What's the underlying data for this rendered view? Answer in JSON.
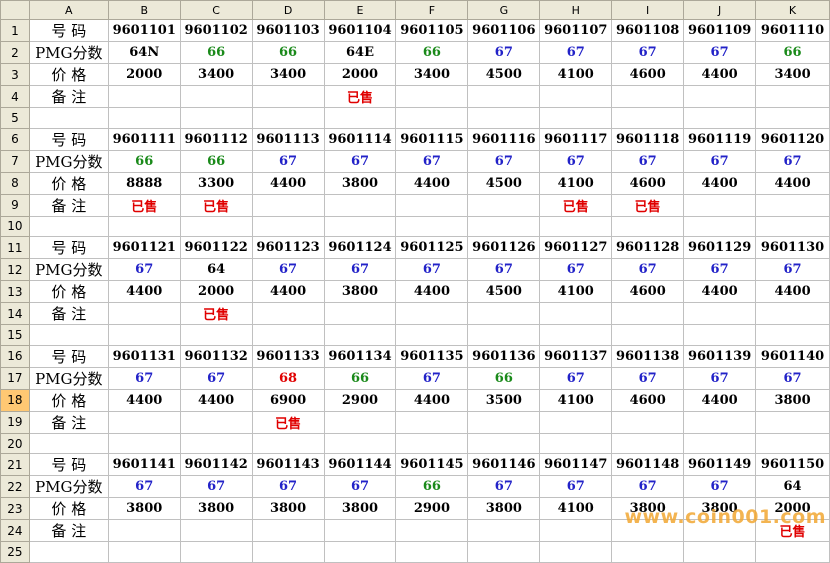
{
  "columns": [
    "A",
    "B",
    "C",
    "D",
    "E",
    "F",
    "G",
    "H",
    "I",
    "J",
    "K"
  ],
  "colors": {
    "green": "#1a8a1a",
    "blue": "#2222c8",
    "red": "#e00000",
    "header_bg": "#ece9d8",
    "active_row_header": "#ffc873"
  },
  "active_row": 18,
  "rows": [
    {
      "n": "1",
      "cells": [
        {
          "t": "号 码"
        },
        {
          "t": "9601101"
        },
        {
          "t": "9601102"
        },
        {
          "t": "9601103"
        },
        {
          "t": "9601104"
        },
        {
          "t": "9601105"
        },
        {
          "t": "9601106"
        },
        {
          "t": "9601107"
        },
        {
          "t": "9601108"
        },
        {
          "t": "9601109"
        },
        {
          "t": "9601110"
        }
      ]
    },
    {
      "n": "2",
      "cells": [
        {
          "t": "PMG分数"
        },
        {
          "t": "64N"
        },
        {
          "t": "66",
          "c": "green"
        },
        {
          "t": "66",
          "c": "green"
        },
        {
          "t": "64E"
        },
        {
          "t": "66",
          "c": "green"
        },
        {
          "t": "67",
          "c": "blue"
        },
        {
          "t": "67",
          "c": "blue"
        },
        {
          "t": "67",
          "c": "blue"
        },
        {
          "t": "67",
          "c": "blue"
        },
        {
          "t": "66",
          "c": "green"
        }
      ]
    },
    {
      "n": "3",
      "cells": [
        {
          "t": "价 格"
        },
        {
          "t": "2000"
        },
        {
          "t": "3400"
        },
        {
          "t": "3400"
        },
        {
          "t": "2000"
        },
        {
          "t": "3400"
        },
        {
          "t": "4500"
        },
        {
          "t": "4100"
        },
        {
          "t": "4600"
        },
        {
          "t": "4400"
        },
        {
          "t": "3400"
        }
      ]
    },
    {
      "n": "4",
      "cells": [
        {
          "t": "备 注"
        },
        {
          "t": ""
        },
        {
          "t": ""
        },
        {
          "t": ""
        },
        {
          "t": "已售",
          "c": "red"
        },
        {
          "t": ""
        },
        {
          "t": ""
        },
        {
          "t": ""
        },
        {
          "t": ""
        },
        {
          "t": ""
        },
        {
          "t": ""
        }
      ]
    },
    {
      "n": "5",
      "cells": [
        {
          "t": ""
        },
        {
          "t": ""
        },
        {
          "t": ""
        },
        {
          "t": ""
        },
        {
          "t": ""
        },
        {
          "t": ""
        },
        {
          "t": ""
        },
        {
          "t": ""
        },
        {
          "t": ""
        },
        {
          "t": ""
        },
        {
          "t": ""
        }
      ]
    },
    {
      "n": "6",
      "cells": [
        {
          "t": "号 码"
        },
        {
          "t": "9601111"
        },
        {
          "t": "9601112"
        },
        {
          "t": "9601113"
        },
        {
          "t": "9601114"
        },
        {
          "t": "9601115"
        },
        {
          "t": "9601116"
        },
        {
          "t": "9601117"
        },
        {
          "t": "9601118"
        },
        {
          "t": "9601119"
        },
        {
          "t": "9601120"
        }
      ]
    },
    {
      "n": "7",
      "cells": [
        {
          "t": "PMG分数"
        },
        {
          "t": "66",
          "c": "green"
        },
        {
          "t": "66",
          "c": "green"
        },
        {
          "t": "67",
          "c": "blue"
        },
        {
          "t": "67",
          "c": "blue"
        },
        {
          "t": "67",
          "c": "blue"
        },
        {
          "t": "67",
          "c": "blue"
        },
        {
          "t": "67",
          "c": "blue"
        },
        {
          "t": "67",
          "c": "blue"
        },
        {
          "t": "67",
          "c": "blue"
        },
        {
          "t": "67",
          "c": "blue"
        }
      ]
    },
    {
      "n": "8",
      "cells": [
        {
          "t": "价 格"
        },
        {
          "t": "8888"
        },
        {
          "t": "3300"
        },
        {
          "t": "4400"
        },
        {
          "t": "3800"
        },
        {
          "t": "4400"
        },
        {
          "t": "4500"
        },
        {
          "t": "4100"
        },
        {
          "t": "4600"
        },
        {
          "t": "4400"
        },
        {
          "t": "4400"
        }
      ]
    },
    {
      "n": "9",
      "cells": [
        {
          "t": "备 注"
        },
        {
          "t": "已售",
          "c": "red"
        },
        {
          "t": "已售",
          "c": "red"
        },
        {
          "t": ""
        },
        {
          "t": ""
        },
        {
          "t": ""
        },
        {
          "t": ""
        },
        {
          "t": "已售",
          "c": "red"
        },
        {
          "t": "已售",
          "c": "red"
        },
        {
          "t": ""
        },
        {
          "t": ""
        }
      ]
    },
    {
      "n": "10",
      "cells": [
        {
          "t": ""
        },
        {
          "t": ""
        },
        {
          "t": ""
        },
        {
          "t": ""
        },
        {
          "t": ""
        },
        {
          "t": ""
        },
        {
          "t": ""
        },
        {
          "t": ""
        },
        {
          "t": ""
        },
        {
          "t": ""
        },
        {
          "t": ""
        }
      ]
    },
    {
      "n": "11",
      "cells": [
        {
          "t": "号 码"
        },
        {
          "t": "9601121"
        },
        {
          "t": "9601122"
        },
        {
          "t": "9601123"
        },
        {
          "t": "9601124"
        },
        {
          "t": "9601125"
        },
        {
          "t": "9601126"
        },
        {
          "t": "9601127"
        },
        {
          "t": "9601128"
        },
        {
          "t": "9601129"
        },
        {
          "t": "9601130"
        }
      ]
    },
    {
      "n": "12",
      "cells": [
        {
          "t": "PMG分数"
        },
        {
          "t": "67",
          "c": "blue"
        },
        {
          "t": "64"
        },
        {
          "t": "67",
          "c": "blue"
        },
        {
          "t": "67",
          "c": "blue"
        },
        {
          "t": "67",
          "c": "blue"
        },
        {
          "t": "67",
          "c": "blue"
        },
        {
          "t": "67",
          "c": "blue"
        },
        {
          "t": "67",
          "c": "blue"
        },
        {
          "t": "67",
          "c": "blue"
        },
        {
          "t": "67",
          "c": "blue"
        }
      ]
    },
    {
      "n": "13",
      "cells": [
        {
          "t": "价 格"
        },
        {
          "t": "4400"
        },
        {
          "t": "2000"
        },
        {
          "t": "4400"
        },
        {
          "t": "3800"
        },
        {
          "t": "4400"
        },
        {
          "t": "4500"
        },
        {
          "t": "4100"
        },
        {
          "t": "4600"
        },
        {
          "t": "4400"
        },
        {
          "t": "4400"
        }
      ]
    },
    {
      "n": "14",
      "cells": [
        {
          "t": "备 注"
        },
        {
          "t": ""
        },
        {
          "t": "已售",
          "c": "red"
        },
        {
          "t": ""
        },
        {
          "t": ""
        },
        {
          "t": ""
        },
        {
          "t": ""
        },
        {
          "t": ""
        },
        {
          "t": ""
        },
        {
          "t": ""
        },
        {
          "t": ""
        }
      ]
    },
    {
      "n": "15",
      "cells": [
        {
          "t": ""
        },
        {
          "t": ""
        },
        {
          "t": ""
        },
        {
          "t": ""
        },
        {
          "t": ""
        },
        {
          "t": ""
        },
        {
          "t": ""
        },
        {
          "t": ""
        },
        {
          "t": ""
        },
        {
          "t": ""
        },
        {
          "t": ""
        }
      ]
    },
    {
      "n": "16",
      "cells": [
        {
          "t": "号 码"
        },
        {
          "t": "9601131"
        },
        {
          "t": "9601132"
        },
        {
          "t": "9601133"
        },
        {
          "t": "9601134"
        },
        {
          "t": "9601135"
        },
        {
          "t": "9601136"
        },
        {
          "t": "9601137"
        },
        {
          "t": "9601138"
        },
        {
          "t": "9601139"
        },
        {
          "t": "9601140"
        }
      ]
    },
    {
      "n": "17",
      "cells": [
        {
          "t": "PMG分数"
        },
        {
          "t": "67",
          "c": "blue"
        },
        {
          "t": "67",
          "c": "blue"
        },
        {
          "t": "68",
          "c": "red"
        },
        {
          "t": "66",
          "c": "green"
        },
        {
          "t": "67",
          "c": "blue"
        },
        {
          "t": "66",
          "c": "green"
        },
        {
          "t": "67",
          "c": "blue"
        },
        {
          "t": "67",
          "c": "blue"
        },
        {
          "t": "67",
          "c": "blue"
        },
        {
          "t": "67",
          "c": "blue"
        }
      ]
    },
    {
      "n": "18",
      "cells": [
        {
          "t": "价 格"
        },
        {
          "t": "4400"
        },
        {
          "t": "4400"
        },
        {
          "t": "6900"
        },
        {
          "t": "2900"
        },
        {
          "t": "4400"
        },
        {
          "t": "3500"
        },
        {
          "t": "4100"
        },
        {
          "t": "4600"
        },
        {
          "t": "4400"
        },
        {
          "t": "3800"
        }
      ]
    },
    {
      "n": "19",
      "cells": [
        {
          "t": "备 注"
        },
        {
          "t": ""
        },
        {
          "t": ""
        },
        {
          "t": "已售",
          "c": "red"
        },
        {
          "t": ""
        },
        {
          "t": ""
        },
        {
          "t": ""
        },
        {
          "t": ""
        },
        {
          "t": ""
        },
        {
          "t": ""
        },
        {
          "t": ""
        }
      ]
    },
    {
      "n": "20",
      "cells": [
        {
          "t": ""
        },
        {
          "t": ""
        },
        {
          "t": ""
        },
        {
          "t": ""
        },
        {
          "t": ""
        },
        {
          "t": ""
        },
        {
          "t": ""
        },
        {
          "t": ""
        },
        {
          "t": ""
        },
        {
          "t": ""
        },
        {
          "t": ""
        }
      ]
    },
    {
      "n": "21",
      "cells": [
        {
          "t": "号 码"
        },
        {
          "t": "9601141"
        },
        {
          "t": "9601142"
        },
        {
          "t": "9601143"
        },
        {
          "t": "9601144"
        },
        {
          "t": "9601145"
        },
        {
          "t": "9601146"
        },
        {
          "t": "9601147"
        },
        {
          "t": "9601148"
        },
        {
          "t": "9601149"
        },
        {
          "t": "9601150"
        }
      ]
    },
    {
      "n": "22",
      "cells": [
        {
          "t": "PMG分数"
        },
        {
          "t": "67",
          "c": "blue"
        },
        {
          "t": "67",
          "c": "blue"
        },
        {
          "t": "67",
          "c": "blue"
        },
        {
          "t": "67",
          "c": "blue"
        },
        {
          "t": "66",
          "c": "green"
        },
        {
          "t": "67",
          "c": "blue"
        },
        {
          "t": "67",
          "c": "blue"
        },
        {
          "t": "67",
          "c": "blue"
        },
        {
          "t": "67",
          "c": "blue"
        },
        {
          "t": "64"
        }
      ]
    },
    {
      "n": "23",
      "cells": [
        {
          "t": "价 格"
        },
        {
          "t": "3800"
        },
        {
          "t": "3800"
        },
        {
          "t": "3800"
        },
        {
          "t": "3800"
        },
        {
          "t": "2900"
        },
        {
          "t": "3800"
        },
        {
          "t": "4100"
        },
        {
          "t": "3800"
        },
        {
          "t": "3800"
        },
        {
          "t": "2000"
        }
      ]
    },
    {
      "n": "24",
      "cells": [
        {
          "t": "备 注"
        },
        {
          "t": ""
        },
        {
          "t": ""
        },
        {
          "t": ""
        },
        {
          "t": ""
        },
        {
          "t": ""
        },
        {
          "t": ""
        },
        {
          "t": ""
        },
        {
          "t": ""
        },
        {
          "t": ""
        },
        {
          "t": "已售",
          "c": "red"
        }
      ]
    },
    {
      "n": "25",
      "cells": [
        {
          "t": ""
        },
        {
          "t": ""
        },
        {
          "t": ""
        },
        {
          "t": ""
        },
        {
          "t": ""
        },
        {
          "t": ""
        },
        {
          "t": ""
        },
        {
          "t": ""
        },
        {
          "t": ""
        },
        {
          "t": ""
        },
        {
          "t": ""
        }
      ]
    }
  ],
  "watermark": "www.coin001.com"
}
